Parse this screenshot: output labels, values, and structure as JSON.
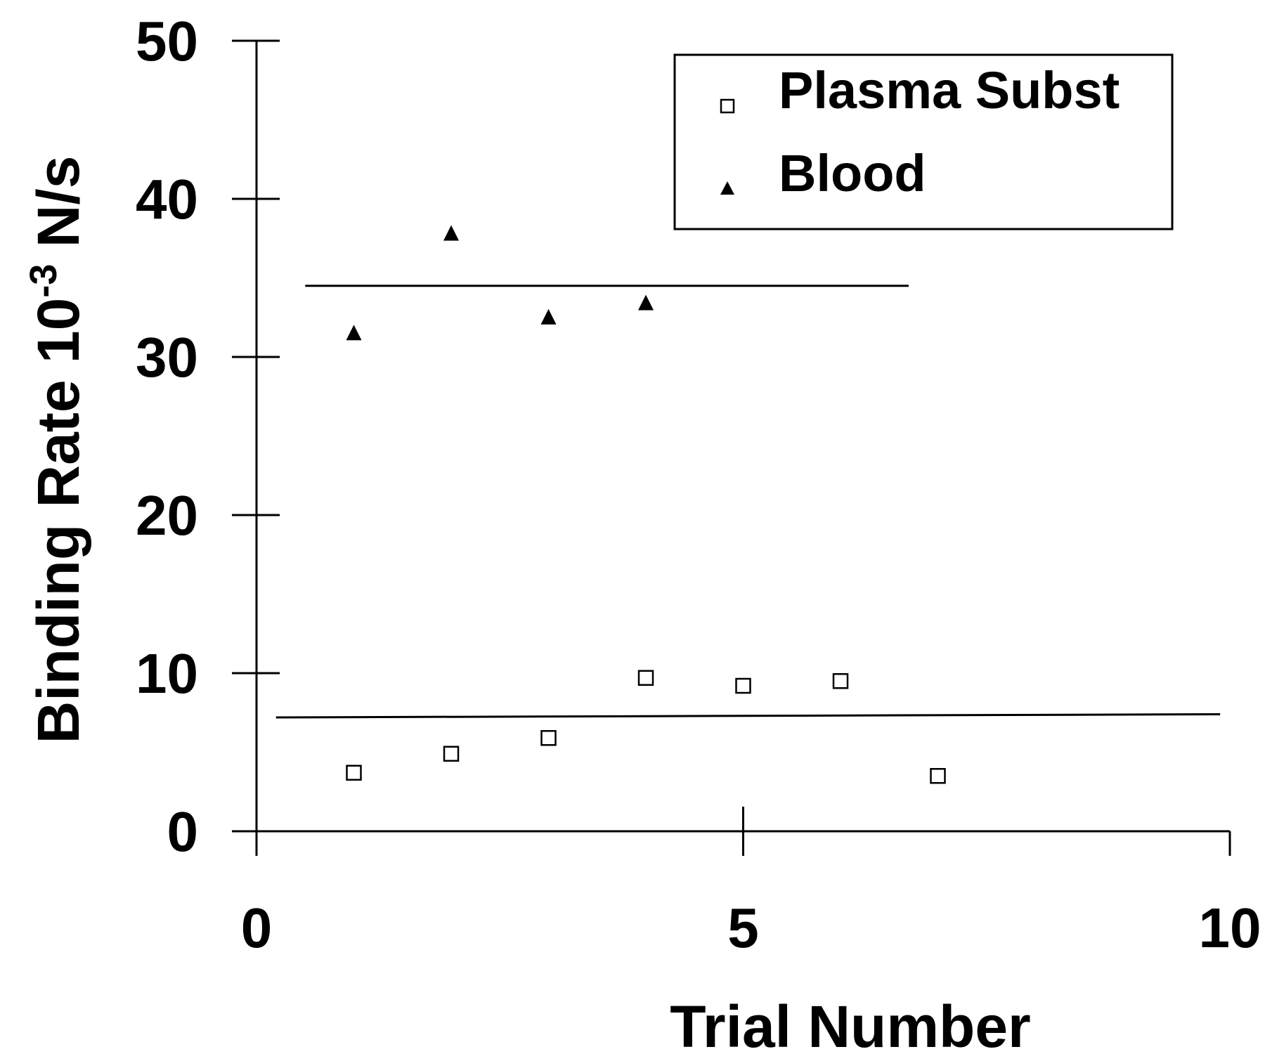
{
  "chart_data": {
    "type": "scatter",
    "title": "",
    "xlabel": "Trial Number",
    "ylabel": {
      "prefix": "Binding Rate 10",
      "superscript": "-3",
      "suffix": " N/s"
    },
    "xlim": [
      0,
      10
    ],
    "ylim": [
      0,
      50
    ],
    "xticks": [
      0,
      5,
      10
    ],
    "yticks": [
      0,
      10,
      20,
      30,
      40,
      50
    ],
    "grid": false,
    "legend_position": "top-right",
    "series": [
      {
        "name": "Plasma Subst",
        "marker": "open-square",
        "color": "#000000",
        "x": [
          1,
          2,
          3,
          4,
          5,
          6,
          7
        ],
        "y": [
          3.7,
          4.9,
          5.9,
          9.7,
          9.2,
          9.5,
          3.5
        ],
        "mean_line": {
          "x": [
            0.2,
            9.9
          ],
          "y": [
            7.2,
            7.4
          ]
        }
      },
      {
        "name": "Blood",
        "marker": "filled-triangle",
        "color": "#000000",
        "x": [
          1,
          2,
          3,
          4
        ],
        "y": [
          31.5,
          37.8,
          32.5,
          33.4
        ],
        "mean_line": {
          "x": [
            0.5,
            6.7
          ],
          "y": [
            34.5,
            34.5
          ]
        }
      }
    ]
  }
}
